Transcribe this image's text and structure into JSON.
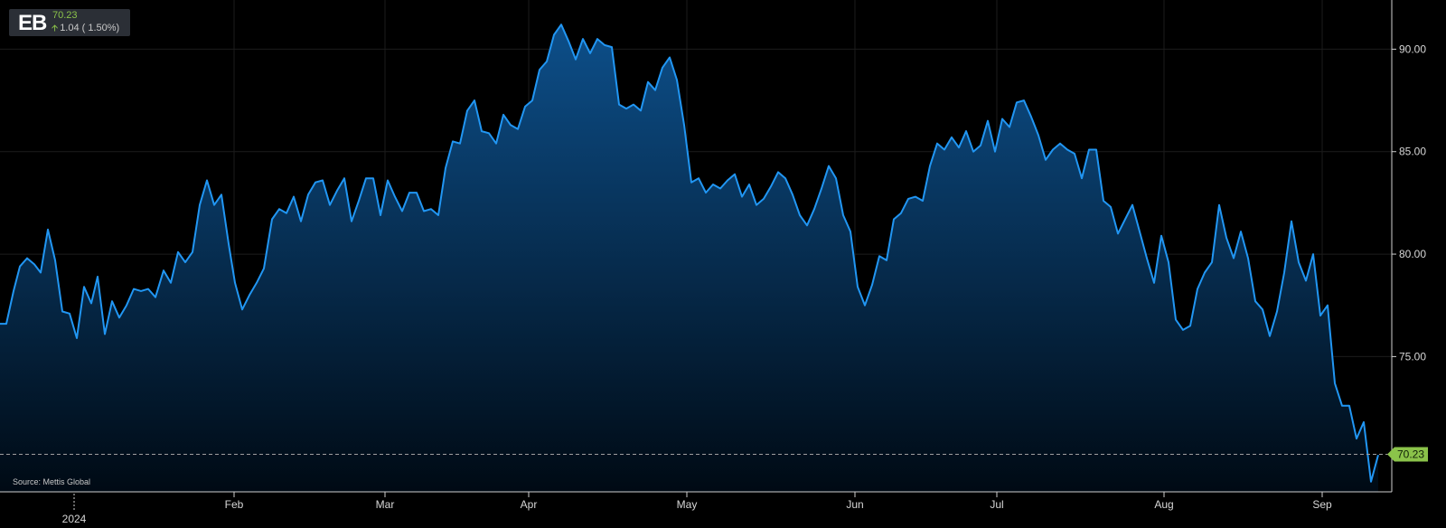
{
  "ticker": {
    "symbol": "EB",
    "price": "70.23",
    "change": "1.04 ( 1.50%)",
    "change_direction": "up"
  },
  "source": "Source: Mettis Global",
  "colors": {
    "background": "#000000",
    "line": "#2196f3",
    "area_top": "#0d4f8a",
    "grid": "#1c1c1c",
    "last_price_tag": "#8bc34a"
  },
  "chart_data": {
    "type": "area",
    "title": "",
    "xlabel": "",
    "ylabel": "",
    "x_tick_labels": [
      "Feb",
      "Mar",
      "Apr",
      "May",
      "Jun",
      "Jul",
      "Aug",
      "Sep"
    ],
    "x_year_label": "2024",
    "y_tick_labels": [
      "90.00",
      "85.00",
      "80.00",
      "75.00"
    ],
    "ylim": [
      68.4,
      92.4
    ],
    "grid": true,
    "last_price": 70.23,
    "last_price_label": "70.23",
    "series": [
      {
        "values": [
          [
            0,
            76.6
          ],
          [
            7,
            76.6
          ],
          [
            15,
            78.2
          ],
          [
            22,
            79.4
          ],
          [
            30,
            79.8
          ],
          [
            38,
            79.5
          ],
          [
            45,
            79.1
          ],
          [
            53,
            81.2
          ],
          [
            61,
            79.7
          ],
          [
            69,
            77.2
          ],
          [
            77,
            77.1
          ],
          [
            85,
            75.9
          ],
          [
            93,
            78.4
          ],
          [
            101,
            77.6
          ],
          [
            108,
            78.9
          ],
          [
            116,
            76.1
          ],
          [
            124,
            77.7
          ],
          [
            132,
            76.9
          ],
          [
            140,
            77.5
          ],
          [
            148,
            78.3
          ],
          [
            156,
            78.2
          ],
          [
            164,
            78.3
          ],
          [
            172,
            77.9
          ],
          [
            181,
            79.2
          ],
          [
            189,
            78.6
          ],
          [
            197,
            80.1
          ],
          [
            205,
            79.6
          ],
          [
            213,
            80.1
          ],
          [
            221,
            82.4
          ],
          [
            229,
            83.6
          ],
          [
            237,
            82.4
          ],
          [
            245,
            82.9
          ],
          [
            253,
            80.5
          ],
          [
            260,
            78.6
          ],
          [
            268,
            77.3
          ],
          [
            276,
            78.0
          ],
          [
            284,
            78.6
          ],
          [
            292,
            79.3
          ],
          [
            301,
            81.7
          ],
          [
            309,
            82.2
          ],
          [
            317,
            82.0
          ],
          [
            325,
            82.8
          ],
          [
            333,
            81.6
          ],
          [
            341,
            82.9
          ],
          [
            349,
            83.5
          ],
          [
            357,
            83.6
          ],
          [
            365,
            82.4
          ],
          [
            373,
            83.1
          ],
          [
            381,
            83.7
          ],
          [
            389,
            81.6
          ],
          [
            397,
            82.6
          ],
          [
            405,
            83.7
          ],
          [
            413,
            83.7
          ],
          [
            421,
            81.9
          ],
          [
            429,
            83.6
          ],
          [
            437,
            82.8
          ],
          [
            445,
            82.1
          ],
          [
            453,
            83.0
          ],
          [
            461,
            83.0
          ],
          [
            469,
            82.1
          ],
          [
            477,
            82.2
          ],
          [
            485,
            81.9
          ],
          [
            493,
            84.2
          ],
          [
            501,
            85.5
          ],
          [
            509,
            85.4
          ],
          [
            517,
            87.0
          ],
          [
            525,
            87.5
          ],
          [
            533,
            86.0
          ],
          [
            541,
            85.9
          ],
          [
            549,
            85.4
          ],
          [
            557,
            86.8
          ],
          [
            565,
            86.3
          ],
          [
            573,
            86.1
          ],
          [
            581,
            87.2
          ],
          [
            589,
            87.5
          ],
          [
            597,
            89.0
          ],
          [
            605,
            89.4
          ],
          [
            613,
            90.7
          ],
          [
            621,
            91.2
          ],
          [
            629,
            90.4
          ],
          [
            637,
            89.5
          ],
          [
            645,
            90.5
          ],
          [
            653,
            89.8
          ],
          [
            661,
            90.5
          ],
          [
            669,
            90.2
          ],
          [
            677,
            90.1
          ],
          [
            685,
            87.3
          ],
          [
            693,
            87.1
          ],
          [
            701,
            87.3
          ],
          [
            709,
            87.0
          ],
          [
            717,
            88.4
          ],
          [
            725,
            88.0
          ],
          [
            733,
            89.1
          ],
          [
            741,
            89.6
          ],
          [
            749,
            88.5
          ],
          [
            757,
            86.3
          ],
          [
            765,
            83.5
          ],
          [
            773,
            83.7
          ],
          [
            781,
            83.0
          ],
          [
            789,
            83.4
          ],
          [
            797,
            83.2
          ],
          [
            805,
            83.6
          ],
          [
            813,
            83.9
          ],
          [
            821,
            82.8
          ],
          [
            829,
            83.4
          ],
          [
            837,
            82.4
          ],
          [
            845,
            82.7
          ],
          [
            853,
            83.3
          ],
          [
            861,
            84.0
          ],
          [
            869,
            83.7
          ],
          [
            877,
            82.9
          ],
          [
            885,
            81.9
          ],
          [
            893,
            81.4
          ],
          [
            901,
            82.2
          ],
          [
            909,
            83.2
          ],
          [
            917,
            84.3
          ],
          [
            925,
            83.7
          ],
          [
            933,
            81.9
          ],
          [
            941,
            81.1
          ],
          [
            949,
            78.4
          ],
          [
            957,
            77.5
          ],
          [
            965,
            78.5
          ],
          [
            973,
            79.9
          ],
          [
            981,
            79.7
          ],
          [
            989,
            81.7
          ],
          [
            997,
            82.0
          ],
          [
            1005,
            82.7
          ],
          [
            1013,
            82.8
          ],
          [
            1021,
            82.6
          ],
          [
            1029,
            84.3
          ],
          [
            1037,
            85.4
          ],
          [
            1045,
            85.1
          ],
          [
            1053,
            85.7
          ],
          [
            1061,
            85.2
          ],
          [
            1069,
            86.0
          ],
          [
            1077,
            85.0
          ],
          [
            1085,
            85.3
          ],
          [
            1093,
            86.5
          ],
          [
            1101,
            85.0
          ],
          [
            1109,
            86.6
          ],
          [
            1117,
            86.2
          ],
          [
            1125,
            87.4
          ],
          [
            1133,
            87.5
          ],
          [
            1141,
            86.7
          ],
          [
            1149,
            85.8
          ],
          [
            1157,
            84.6
          ],
          [
            1165,
            85.1
          ],
          [
            1173,
            85.4
          ],
          [
            1181,
            85.1
          ],
          [
            1189,
            84.9
          ],
          [
            1197,
            83.7
          ],
          [
            1205,
            85.1
          ],
          [
            1213,
            85.1
          ],
          [
            1221,
            82.6
          ],
          [
            1229,
            82.3
          ],
          [
            1237,
            81.0
          ],
          [
            1245,
            81.7
          ],
          [
            1253,
            82.4
          ],
          [
            1261,
            81.1
          ],
          [
            1269,
            79.8
          ],
          [
            1277,
            78.6
          ],
          [
            1285,
            80.9
          ],
          [
            1293,
            79.6
          ],
          [
            1301,
            76.8
          ],
          [
            1309,
            76.3
          ],
          [
            1317,
            76.5
          ],
          [
            1325,
            78.3
          ],
          [
            1333,
            79.1
          ],
          [
            1341,
            79.6
          ],
          [
            1349,
            82.4
          ],
          [
            1357,
            80.8
          ],
          [
            1365,
            79.8
          ],
          [
            1373,
            81.1
          ],
          [
            1381,
            79.8
          ],
          [
            1389,
            77.7
          ],
          [
            1397,
            77.3
          ],
          [
            1405,
            76.0
          ],
          [
            1413,
            77.2
          ],
          [
            1421,
            79.1
          ],
          [
            1429,
            81.6
          ],
          [
            1437,
            79.6
          ],
          [
            1445,
            78.7
          ],
          [
            1453,
            80.0
          ],
          [
            1461,
            77.0
          ],
          [
            1469,
            77.5
          ],
          [
            1477,
            73.7
          ],
          [
            1485,
            72.6
          ],
          [
            1493,
            72.6
          ],
          [
            1501,
            71.0
          ],
          [
            1509,
            71.8
          ],
          [
            1517,
            68.9
          ],
          [
            1525,
            70.2
          ]
        ]
      }
    ]
  }
}
